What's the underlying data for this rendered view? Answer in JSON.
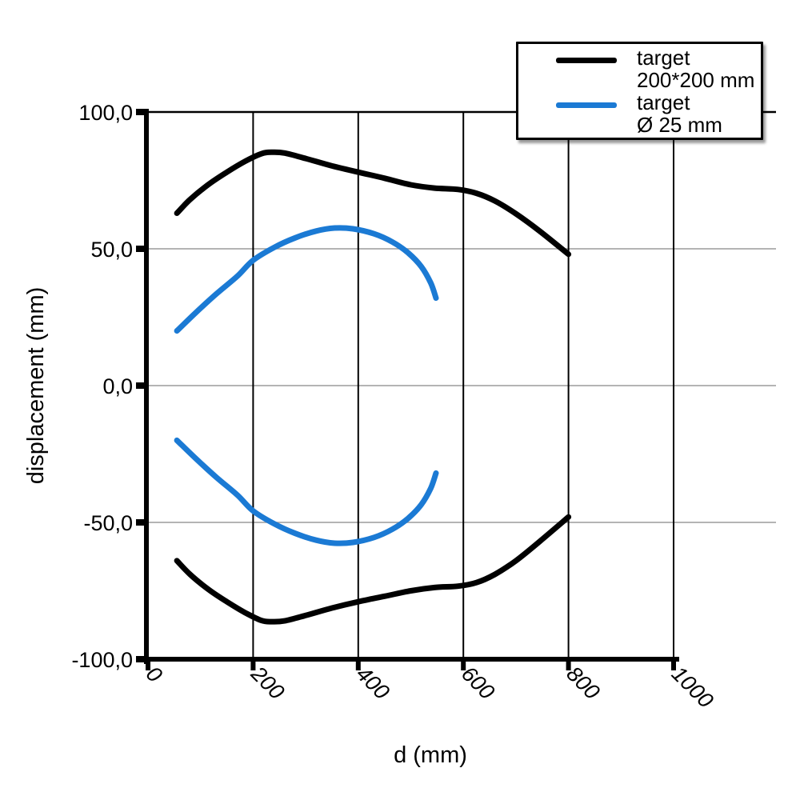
{
  "colors": {
    "black_series": "#000000",
    "blue_series": "#1b7ad4",
    "grid_gray": "#9b9b9b",
    "axis": "#000000",
    "legend_border": "#000000",
    "background": "#ffffff"
  },
  "legend": {
    "items": [
      {
        "line1": "target",
        "line2": "200*200 mm",
        "color": "#000000"
      },
      {
        "line1": "target",
        "line2": "Ø 25 mm",
        "color": "#1b7ad4"
      }
    ]
  },
  "chart_data": {
    "type": "line",
    "title": "",
    "xlabel": "d (mm)",
    "ylabel": "displacement (mm)",
    "xlim": [
      0,
      1000
    ],
    "ylim": [
      -100,
      100
    ],
    "x_ticks": [
      0,
      200,
      400,
      600,
      800,
      1000
    ],
    "x_tick_labels": [
      "0",
      "200",
      "400",
      "600",
      "800",
      "1000"
    ],
    "y_ticks": [
      100,
      50,
      0,
      -50,
      -100
    ],
    "y_tick_labels": [
      "100,0",
      "50,0",
      "0,0",
      "-50,0",
      "-100,0"
    ],
    "grid": {
      "vertical_black_at_x": [
        200,
        400,
        600,
        800,
        1000
      ],
      "horizontal_gray_at_y": [
        50,
        0,
        -50
      ],
      "horizontal_black_at_y": [
        100
      ]
    },
    "legend_position": "top-right",
    "series": [
      {
        "id": "target-200x200-upper",
        "name": "target 200*200 mm (upper limit)",
        "color_key": "black_series",
        "points": [
          [
            55,
            63
          ],
          [
            80,
            68
          ],
          [
            115,
            73.5
          ],
          [
            150,
            78
          ],
          [
            185,
            82
          ],
          [
            215,
            84.7
          ],
          [
            235,
            85.3
          ],
          [
            260,
            85
          ],
          [
            300,
            83
          ],
          [
            350,
            80.3
          ],
          [
            400,
            78
          ],
          [
            450,
            75.8
          ],
          [
            500,
            73.4
          ],
          [
            545,
            72.2
          ],
          [
            590,
            71.7
          ],
          [
            625,
            70.3
          ],
          [
            660,
            67.5
          ],
          [
            700,
            62.8
          ],
          [
            745,
            56.5
          ],
          [
            800,
            48
          ]
        ]
      },
      {
        "id": "target-200x200-lower",
        "name": "target 200*200 mm (lower limit)",
        "color_key": "black_series",
        "points": [
          [
            55,
            -64
          ],
          [
            80,
            -69
          ],
          [
            115,
            -74.5
          ],
          [
            150,
            -79
          ],
          [
            185,
            -83
          ],
          [
            215,
            -85.8
          ],
          [
            235,
            -86.3
          ],
          [
            260,
            -86
          ],
          [
            300,
            -84
          ],
          [
            350,
            -81.3
          ],
          [
            400,
            -79
          ],
          [
            450,
            -77
          ],
          [
            500,
            -75
          ],
          [
            545,
            -73.8
          ],
          [
            590,
            -73.3
          ],
          [
            625,
            -72
          ],
          [
            660,
            -69
          ],
          [
            700,
            -64
          ],
          [
            745,
            -57
          ],
          [
            800,
            -48
          ]
        ]
      },
      {
        "id": "target-d25-upper",
        "name": "target Ø 25 mm (upper limit)",
        "color_key": "blue_series",
        "points": [
          [
            55,
            20
          ],
          [
            90,
            26.5
          ],
          [
            130,
            33.5
          ],
          [
            170,
            40
          ],
          [
            200,
            45.8
          ],
          [
            240,
            50.5
          ],
          [
            280,
            54
          ],
          [
            320,
            56.5
          ],
          [
            355,
            57.6
          ],
          [
            390,
            57.3
          ],
          [
            430,
            55.5
          ],
          [
            465,
            52.5
          ],
          [
            495,
            48.5
          ],
          [
            520,
            43.5
          ],
          [
            538,
            37.5
          ],
          [
            548,
            32
          ]
        ]
      },
      {
        "id": "target-d25-lower",
        "name": "target Ø 25 mm (lower limit)",
        "color_key": "blue_series",
        "points": [
          [
            55,
            -20
          ],
          [
            90,
            -26.5
          ],
          [
            130,
            -33.5
          ],
          [
            170,
            -40
          ],
          [
            200,
            -45.8
          ],
          [
            240,
            -50.5
          ],
          [
            280,
            -54
          ],
          [
            320,
            -56.5
          ],
          [
            355,
            -57.6
          ],
          [
            390,
            -57.3
          ],
          [
            430,
            -55.5
          ],
          [
            465,
            -52.5
          ],
          [
            495,
            -48.5
          ],
          [
            520,
            -43.5
          ],
          [
            538,
            -37.5
          ],
          [
            548,
            -32
          ]
        ]
      }
    ]
  }
}
